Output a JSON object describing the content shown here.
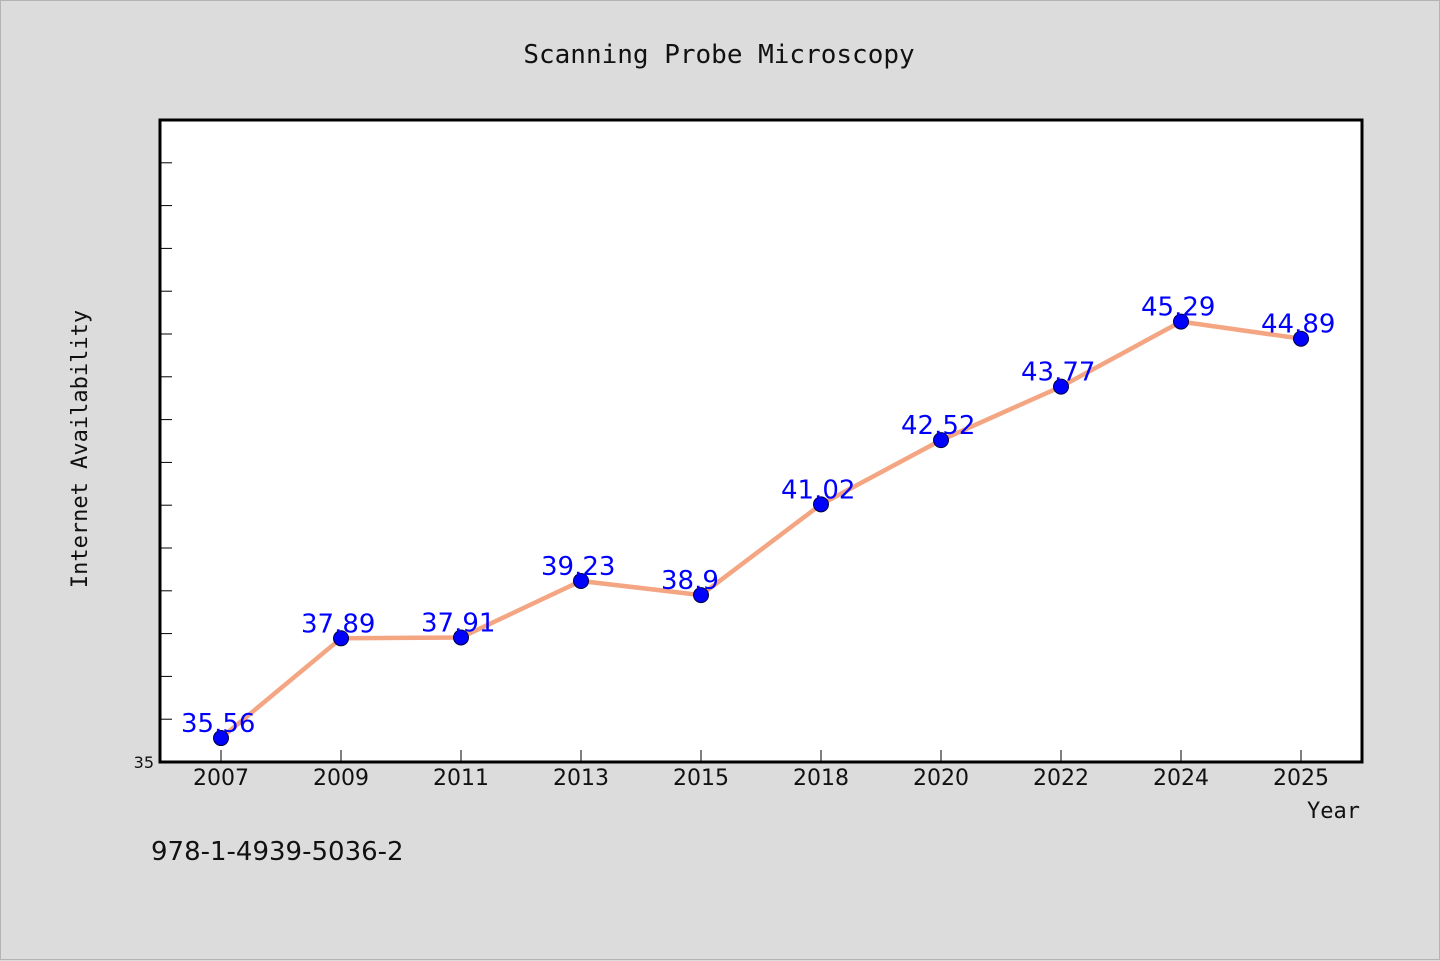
{
  "chart_data": {
    "type": "line",
    "title": "Scanning Probe Microscopy",
    "xlabel": "Year",
    "ylabel": "Internet Availability",
    "categories": [
      "2007",
      "2009",
      "2011",
      "2013",
      "2015",
      "2018",
      "2020",
      "2022",
      "2024",
      "2025"
    ],
    "series": [
      {
        "values": [
          35.56,
          37.89,
          37.91,
          39.23,
          38.9,
          41.02,
          42.52,
          43.77,
          45.29,
          44.89
        ],
        "data_labels": [
          "35.56",
          "37.89",
          "37.91",
          "39.23",
          "38.9",
          "41.02",
          "42.52",
          "43.77",
          "45.29",
          "44.89"
        ]
      }
    ],
    "ylim": [
      35,
      50
    ],
    "ytick_labels": [
      "35"
    ],
    "grid": false,
    "legend": false,
    "colors": {
      "line": "#f4a582",
      "marker": "#0000ff",
      "data_label": "#0000ff"
    }
  },
  "footer_text": "978-1-4939-5036-2"
}
